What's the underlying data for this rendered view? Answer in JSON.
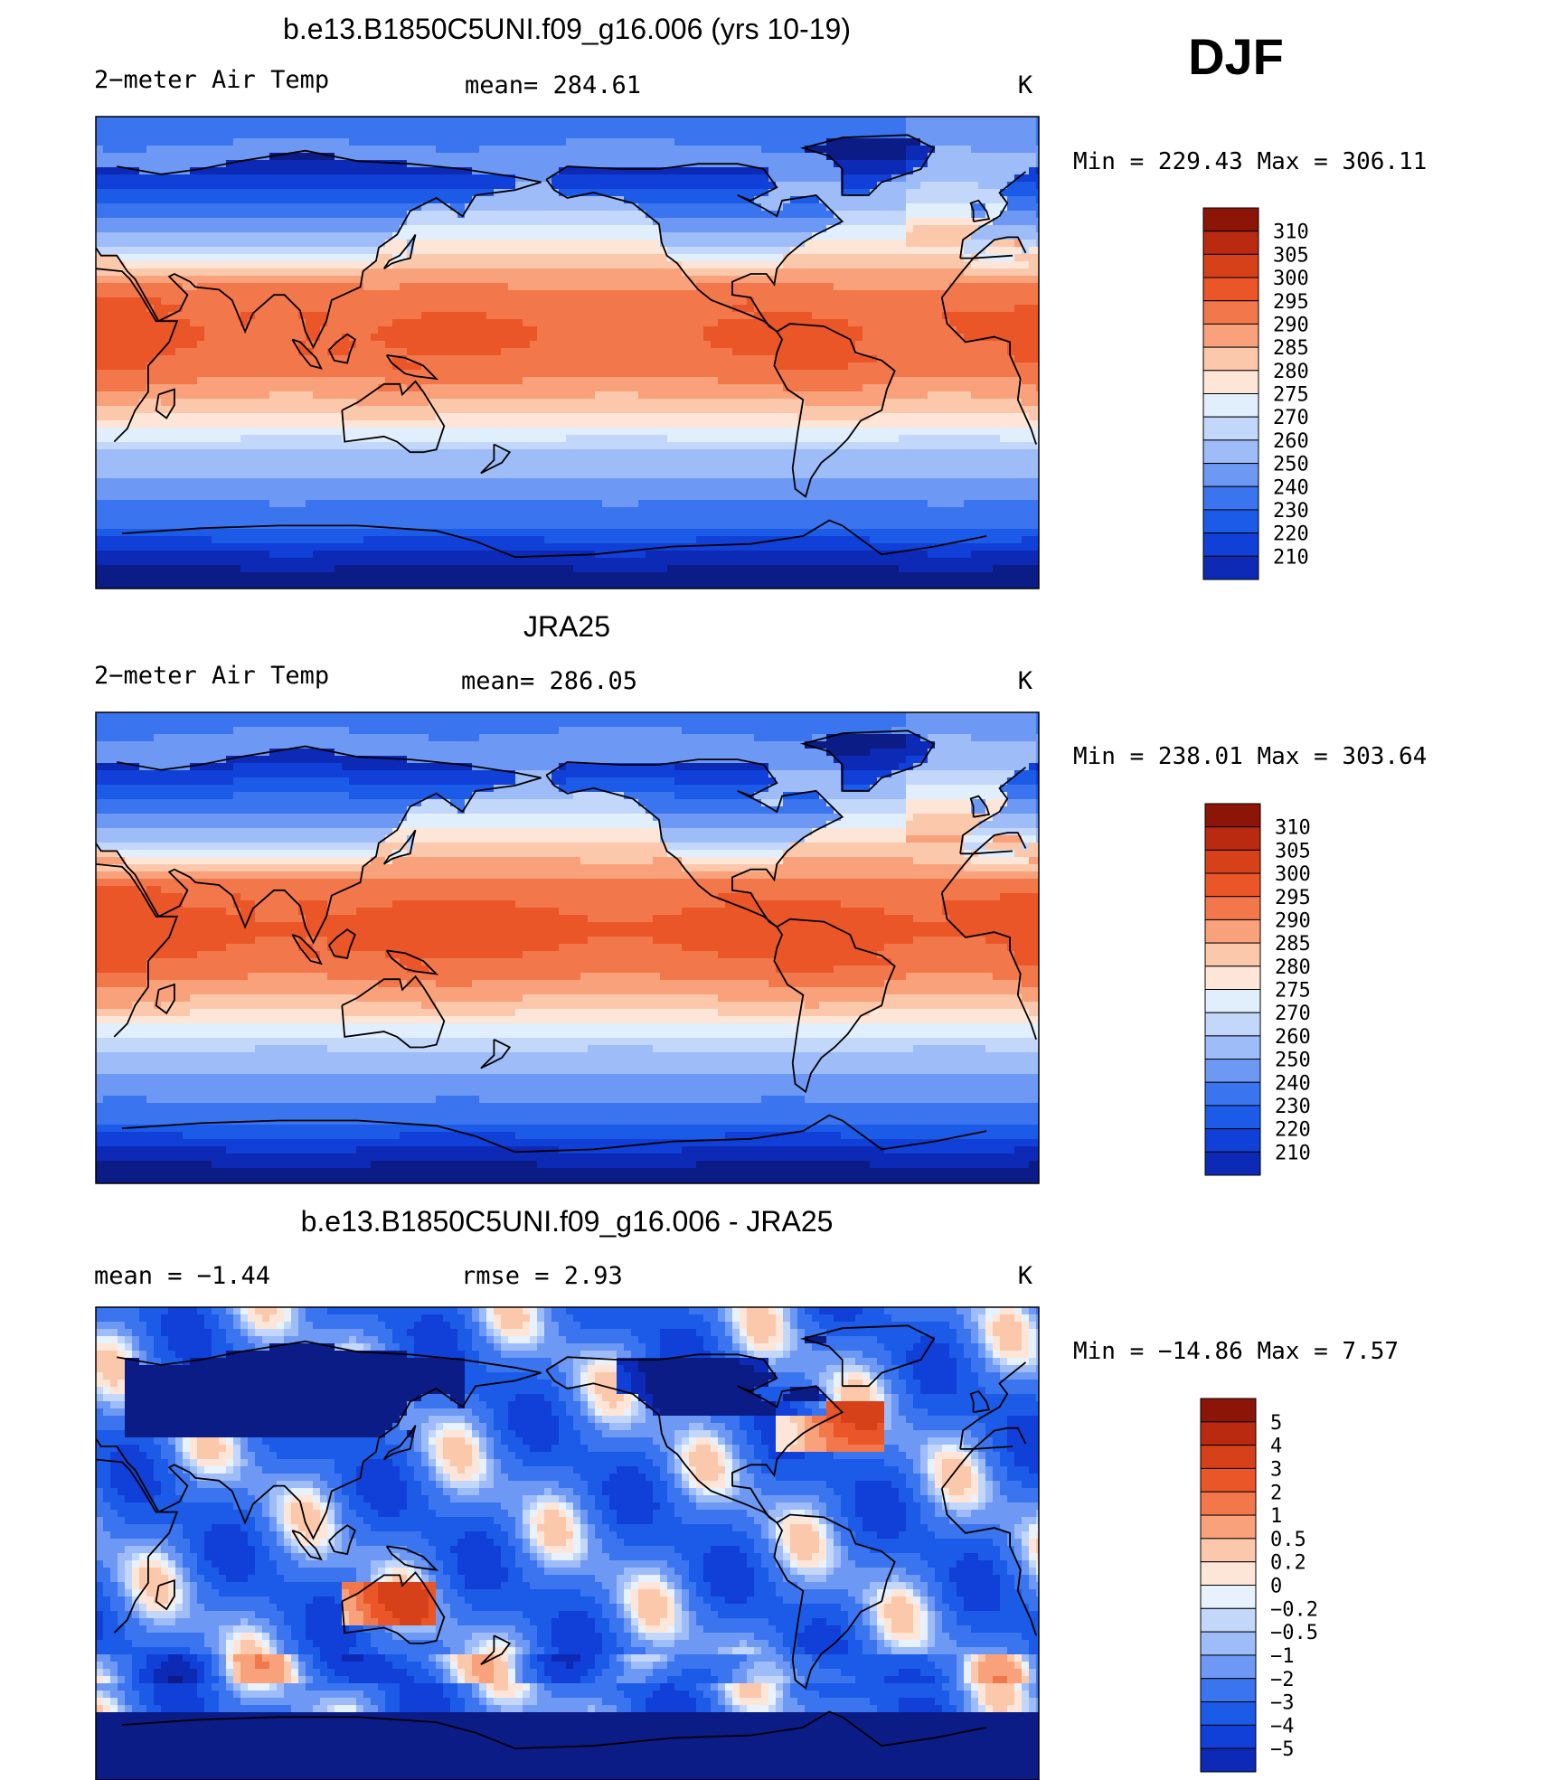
{
  "page_title_season": "DJF",
  "palette_temp": [
    "#0b1c86",
    "#0c2ab6",
    "#1040d8",
    "#1b5be8",
    "#3a75ef",
    "#6d98f4",
    "#9dbcf8",
    "#c3d7fb",
    "#e1eefc",
    "#fde6d8",
    "#fcc8ac",
    "#f8a17a",
    "#f2784c",
    "#ea5628",
    "#d7411a",
    "#b92a10",
    "#8c1508"
  ],
  "palette_diff": [
    "#0b1c86",
    "#0c2ab6",
    "#1040d8",
    "#1b5be8",
    "#3a75ef",
    "#6d98f4",
    "#9dbcf8",
    "#c3d7fb",
    "#e8f2fc",
    "#fde6d8",
    "#fcc8ac",
    "#f8a17a",
    "#f2784c",
    "#ea5628",
    "#d7411a",
    "#b92a10",
    "#8c1508"
  ],
  "panels": [
    {
      "id": "model",
      "title": "b.e13.B1850C5UNI.f09_g16.006 (yrs 10-19)",
      "left_label": "2−meter Air Temp",
      "center_label": "mean=  284.61",
      "units": "K",
      "minmax": "Min  =  229.43  Max  =  306.11",
      "colorbar_labels": [
        "310",
        "305",
        "300",
        "295",
        "290",
        "285",
        "280",
        "275",
        "270",
        "260",
        "250",
        "240",
        "230",
        "220",
        "210"
      ],
      "palette": "temp",
      "field": "model"
    },
    {
      "id": "obs",
      "title": "JRA25",
      "left_label": "2−meter Air Temp",
      "center_label": "mean=  286.05",
      "units": "K",
      "minmax": "Min  =  238.01  Max  =  303.64",
      "colorbar_labels": [
        "310",
        "305",
        "300",
        "295",
        "290",
        "285",
        "280",
        "275",
        "270",
        "260",
        "250",
        "240",
        "230",
        "220",
        "210"
      ],
      "palette": "temp",
      "field": "obs"
    },
    {
      "id": "diff",
      "title": "b.e13.B1850C5UNI.f09_g16.006 - JRA25",
      "left_label": "mean  =    −1.44",
      "center_label": "rmse  =     2.93",
      "units": "K",
      "minmax": "Min  =  −14.86  Max  =       7.57",
      "colorbar_labels": [
        "5",
        "4",
        "3",
        "2",
        "1",
        "0.5",
        "0.2",
        "0",
        "−0.2",
        "−0.5",
        "−1",
        "−2",
        "−3",
        "−4",
        "−5"
      ],
      "palette": "diff",
      "field": "diff"
    }
  ]
}
